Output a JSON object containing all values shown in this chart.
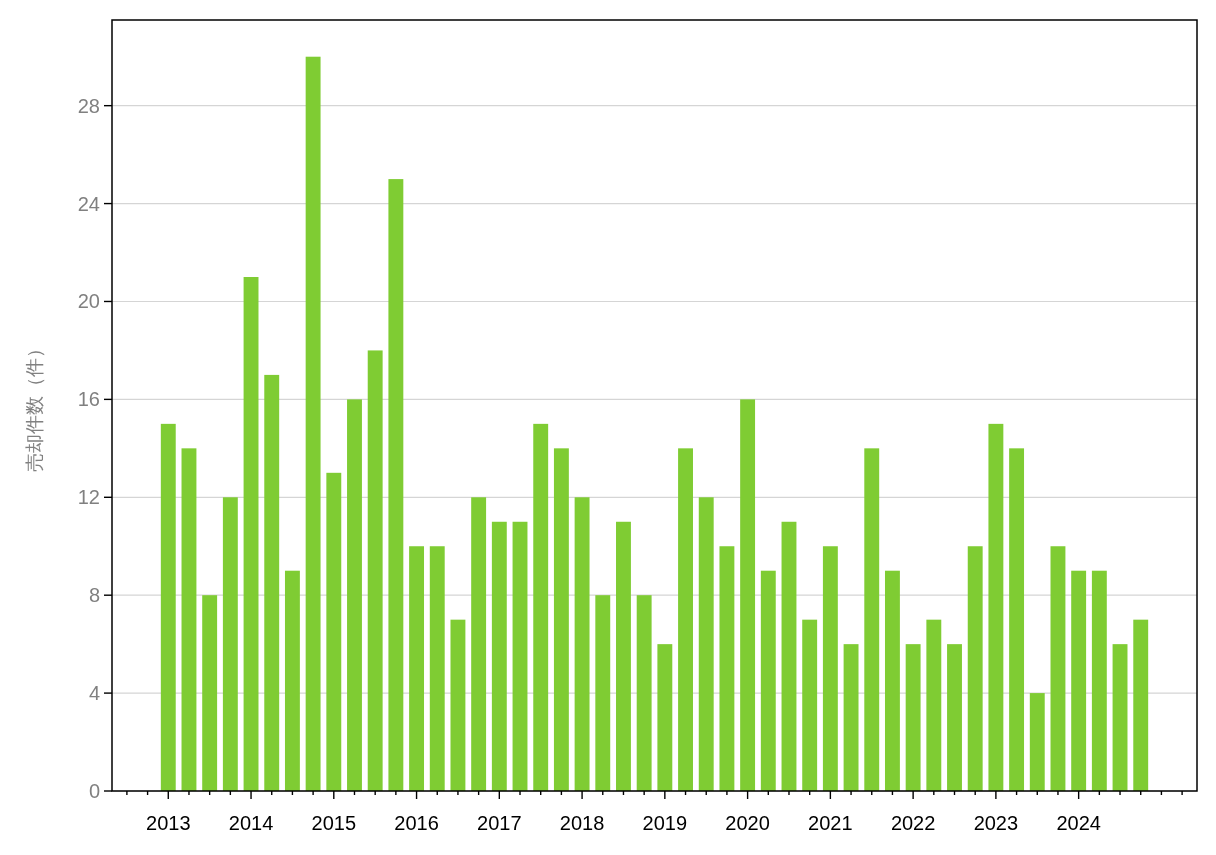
{
  "chart_data": {
    "type": "bar",
    "ylabel": "売却件数（件）",
    "categories": [
      "2013",
      null,
      null,
      null,
      "2014",
      null,
      null,
      null,
      "2015",
      null,
      null,
      null,
      "2016",
      null,
      null,
      null,
      "2017",
      null,
      null,
      null,
      "2018",
      null,
      null,
      null,
      "2019",
      null,
      null,
      null,
      "2020",
      null,
      null,
      null,
      "2021",
      null,
      null,
      null,
      "2022",
      null,
      null,
      null,
      "2023",
      null,
      null,
      null,
      "2024",
      null,
      null,
      null
    ],
    "values": [
      15,
      14,
      8,
      12,
      21,
      17,
      9,
      30,
      13,
      16,
      18,
      25,
      10,
      10,
      7,
      12,
      11,
      11,
      15,
      14,
      12,
      8,
      11,
      8,
      6,
      14,
      12,
      10,
      16,
      9,
      11,
      7,
      10,
      6,
      14,
      9,
      6,
      7,
      6,
      10,
      15,
      14,
      4,
      10,
      9,
      9,
      6,
      7
    ],
    "color": "#7fcc33",
    "ylim": [
      0,
      31.5
    ],
    "yticks": [
      0,
      4,
      8,
      12,
      16,
      20,
      24,
      28
    ],
    "grid": "y"
  }
}
